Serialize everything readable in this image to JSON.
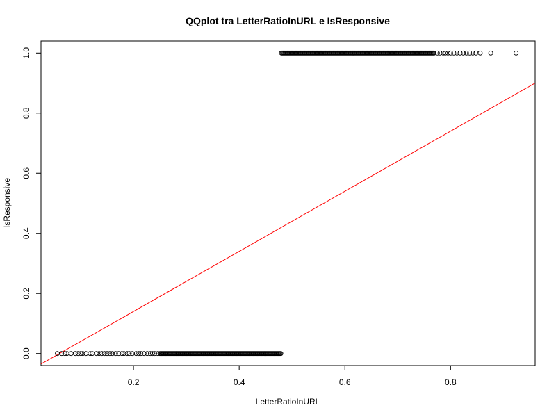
{
  "chart_data": {
    "type": "scatter",
    "title": "QQplot tra LetterRatioInURL e IsResponsive",
    "xlabel": "LetterRatioInURL",
    "ylabel": "IsResponsive",
    "xlim": [
      0.025,
      0.96
    ],
    "ylim": [
      -0.04,
      1.04
    ],
    "x_ticks": [
      0.2,
      0.4,
      0.6,
      0.8
    ],
    "x_tick_labels": [
      "0.2",
      "0.4",
      "0.6",
      "0.8"
    ],
    "y_ticks": [
      0.0,
      0.2,
      0.4,
      0.6,
      0.8,
      1.0
    ],
    "y_tick_labels": [
      "0.0",
      "0.2",
      "0.4",
      "0.6",
      "0.8",
      "1.0"
    ],
    "grid": false,
    "series": [
      {
        "marker": "open-circle",
        "color": "#000000",
        "points": {
          "y0_x_sparse": [
            0.056,
            0.064,
            0.07,
            0.074,
            0.082,
            0.09,
            0.095,
            0.1,
            0.104,
            0.11,
            0.118,
            0.122,
            0.13,
            0.135,
            0.14,
            0.145,
            0.15,
            0.155,
            0.16,
            0.166,
            0.172,
            0.178,
            0.182,
            0.188,
            0.192,
            0.198,
            0.205,
            0.21,
            0.214,
            0.22,
            0.226,
            0.232,
            0.236,
            0.24,
            0.246
          ],
          "y0_x_dense_range": [
            0.25,
            0.48
          ],
          "y1_x_dense_range": [
            0.48,
            0.77
          ],
          "y1_x_sparse": [
            0.775,
            0.78,
            0.786,
            0.79,
            0.795,
            0.8,
            0.806,
            0.812,
            0.818,
            0.824,
            0.83,
            0.836,
            0.842,
            0.848,
            0.856,
            0.876,
            0.924
          ]
        }
      }
    ],
    "reference_line": {
      "color": "#ff0000",
      "intercept": -0.06,
      "slope": 1.0
    }
  }
}
